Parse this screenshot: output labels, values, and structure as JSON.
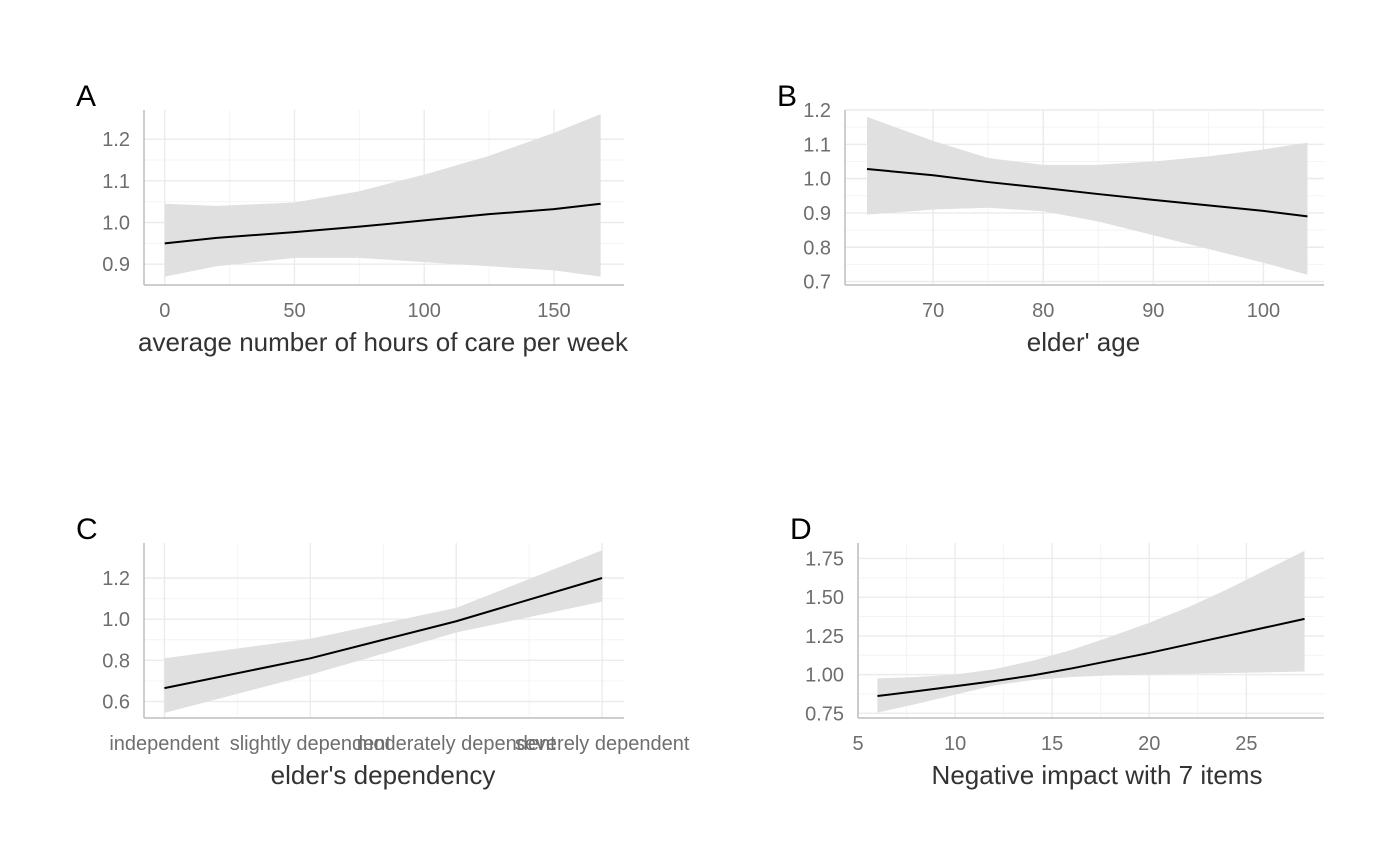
{
  "colors": {
    "band": "#e0e0e0",
    "line": "#000000",
    "grid_major": "#ebebeb",
    "grid_minor": "#f4f4f4",
    "axis": "#bdbdbd",
    "tick_text": "#6e6e6e",
    "label_text": "#333333",
    "panel_tag": "#000000"
  },
  "chart_data": [
    {
      "tag": "A",
      "type": "line",
      "title": "",
      "xlabel": "average number of hours of care per week",
      "ylabel": "",
      "xlim": [
        -8,
        177
      ],
      "ylim": [
        0.85,
        1.27
      ],
      "xticks": [
        0,
        50,
        100,
        150
      ],
      "xtick_labels": [
        "0",
        "50",
        "100",
        "150"
      ],
      "yticks": [
        0.9,
        1.0,
        1.1,
        1.2
      ],
      "ytick_labels": [
        "0.9",
        "1.0",
        "1.1",
        "1.2"
      ],
      "grid": true,
      "series": [
        {
          "x": [
            0,
            20,
            50,
            75,
            100,
            125,
            150,
            168
          ],
          "y": [
            0.95,
            0.963,
            0.977,
            0.99,
            1.005,
            1.02,
            1.032,
            1.045
          ],
          "lower": [
            0.87,
            0.895,
            0.915,
            0.915,
            0.905,
            0.895,
            0.885,
            0.87
          ],
          "upper": [
            1.045,
            1.04,
            1.048,
            1.075,
            1.115,
            1.16,
            1.215,
            1.26
          ]
        }
      ]
    },
    {
      "tag": "B",
      "type": "line",
      "title": "",
      "xlabel": "elder' age",
      "ylabel": "",
      "xlim": [
        62,
        105.5
      ],
      "ylim": [
        0.69,
        1.2
      ],
      "xticks": [
        70,
        80,
        90,
        100
      ],
      "xtick_labels": [
        "70",
        "80",
        "90",
        "100"
      ],
      "yticks": [
        0.7,
        0.8,
        0.9,
        1.0,
        1.1,
        1.2
      ],
      "ytick_labels": [
        "0.7",
        "0.8",
        "0.9",
        "1.0",
        "1.1",
        "1.2"
      ],
      "grid": true,
      "series": [
        {
          "x": [
            64,
            70,
            75,
            80,
            85,
            90,
            95,
            100,
            104
          ],
          "y": [
            1.028,
            1.01,
            0.99,
            0.973,
            0.955,
            0.938,
            0.922,
            0.906,
            0.89
          ],
          "lower": [
            0.895,
            0.91,
            0.915,
            0.905,
            0.875,
            0.835,
            0.795,
            0.755,
            0.72
          ],
          "upper": [
            1.18,
            1.11,
            1.06,
            1.04,
            1.04,
            1.05,
            1.065,
            1.085,
            1.105
          ]
        }
      ]
    },
    {
      "tag": "C",
      "type": "line",
      "title": "",
      "xlabel": "elder's dependency",
      "ylabel": "",
      "xlim": [
        0.86,
        4.15
      ],
      "ylim": [
        0.52,
        1.37
      ],
      "xticks": [
        1,
        2,
        3,
        4
      ],
      "xtick_labels": [
        "independent",
        "slightly dependent",
        "moderately dependent",
        "severely dependent"
      ],
      "yticks": [
        0.6,
        0.8,
        1.0,
        1.2
      ],
      "ytick_labels": [
        "0.6",
        "0.8",
        "1.0",
        "1.2"
      ],
      "grid": true,
      "series": [
        {
          "x": [
            1,
            2,
            3,
            4
          ],
          "y": [
            0.665,
            0.81,
            0.99,
            1.2
          ],
          "lower": [
            0.545,
            0.73,
            0.935,
            1.085
          ],
          "upper": [
            0.81,
            0.905,
            1.055,
            1.335
          ]
        }
      ]
    },
    {
      "tag": "D",
      "type": "line",
      "title": "",
      "xlabel": "Negative impact with 7 items",
      "ylabel": "",
      "xlim": [
        5,
        29
      ],
      "ylim": [
        0.72,
        1.85
      ],
      "xticks": [
        5,
        10,
        15,
        20,
        25
      ],
      "xtick_labels": [
        "5",
        "10",
        "15",
        "20",
        "25"
      ],
      "yticks": [
        0.75,
        1.0,
        1.25,
        1.5,
        1.75
      ],
      "ytick_labels": [
        "0.75",
        "1.00",
        "1.25",
        "1.50",
        "1.75"
      ],
      "grid": true,
      "series": [
        {
          "x": [
            6,
            8,
            10,
            12,
            14,
            16,
            18,
            20,
            22,
            24,
            26,
            28
          ],
          "y": [
            0.862,
            0.893,
            0.925,
            0.958,
            0.995,
            1.04,
            1.09,
            1.14,
            1.195,
            1.25,
            1.305,
            1.36
          ],
          "lower": [
            0.755,
            0.81,
            0.87,
            0.93,
            0.965,
            0.985,
            0.995,
            1.0,
            1.005,
            1.01,
            1.015,
            1.02
          ],
          "upper": [
            0.975,
            0.985,
            1.0,
            1.035,
            1.09,
            1.16,
            1.245,
            1.335,
            1.435,
            1.55,
            1.675,
            1.8
          ]
        }
      ]
    }
  ]
}
